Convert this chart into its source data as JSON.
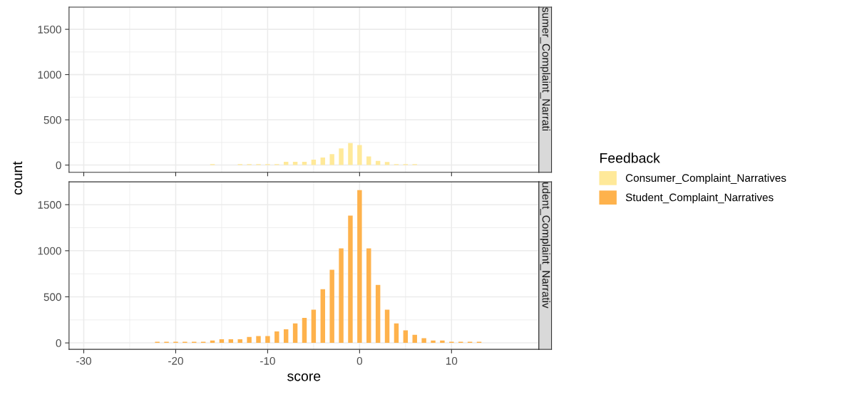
{
  "chart_data": [
    {
      "type": "bar",
      "ylabel": "count",
      "legend_title": "Feedback",
      "legend": "right",
      "grid": true,
      "tick_labels": "y",
      "annotations": [
        "sumer_Complaint_Narrati"
      ],
      "x": [
        -16,
        -13,
        -12,
        -11,
        -10,
        -9,
        -8,
        -7,
        -6,
        -5,
        -4,
        -3,
        -2,
        -1,
        0,
        1,
        2,
        3,
        4,
        5,
        6
      ],
      "series": [
        {
          "name": "Consumer_Complaint_Narratives",
          "color": "#ffe999",
          "values": [
            10,
            10,
            10,
            10,
            10,
            10,
            36,
            36,
            36,
            59,
            83,
            121,
            183,
            242,
            222,
            96,
            46,
            34,
            10,
            10,
            10
          ]
        }
      ],
      "xlim": [
        -31.6,
        19.5
      ],
      "xticks": [
        -30,
        -20,
        -10,
        0,
        10
      ],
      "ylim": [
        -80,
        1745
      ],
      "yticks": [
        0,
        500,
        1000,
        1500
      ]
    },
    {
      "type": "bar",
      "xlabel": "score",
      "grid": true,
      "annotations": [
        "udent_Complaint_Narrativ"
      ],
      "x": [
        -22,
        -21,
        -20,
        -19,
        -18,
        -17,
        -16,
        -15,
        -14,
        -13,
        -12,
        -11,
        -10,
        -9,
        -8,
        -7,
        -6,
        -5,
        -4,
        -3,
        -2,
        -1,
        0,
        1,
        2,
        3,
        4,
        5,
        6,
        7,
        8,
        9,
        10,
        11,
        12,
        13
      ],
      "series": [
        {
          "name": "Student_Complaint_Narratives",
          "color": "#feb24c",
          "values": [
            13,
            13,
            13,
            13,
            13,
            13,
            26,
            39,
            39,
            39,
            65,
            75,
            75,
            124,
            148,
            212,
            272,
            360,
            583,
            793,
            1026,
            1381,
            1658,
            1026,
            630,
            360,
            212,
            137,
            88,
            52,
            26,
            26,
            13,
            13,
            13,
            13
          ]
        }
      ],
      "xlim": [
        -31.6,
        19.5
      ],
      "xticks": [
        -30,
        -20,
        -10,
        0,
        10
      ],
      "ylim": [
        -70,
        1748
      ],
      "yticks": [
        0,
        500,
        1000,
        1500
      ]
    }
  ]
}
